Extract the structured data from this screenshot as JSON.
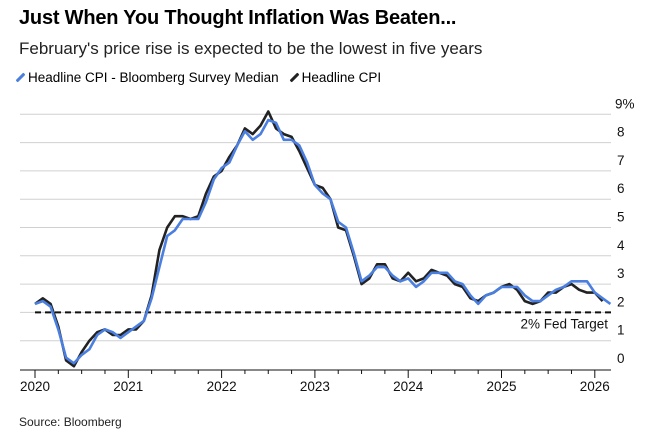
{
  "title": "Just When You Thought Inflation Was Beaten...",
  "subtitle": "February's price rise is expected to be the lowest in five years",
  "source": "Source: Bloomberg",
  "colors": {
    "survey": "#4a7fe0",
    "actual": "#222222",
    "grid": "#d0d0d0"
  },
  "chart_data": {
    "type": "line",
    "title": "Just When You Thought Inflation Was Beaten...",
    "xlabel": "",
    "ylabel": "%",
    "x_start": "2019-12",
    "x_step": "month",
    "xlim": [
      2020,
      2026.3
    ],
    "ylim": [
      0,
      9
    ],
    "x_ticks": [
      "2020",
      "2021",
      "2022",
      "2023",
      "2024",
      "2025",
      "2026"
    ],
    "x_tick_values": [
      2020,
      2021,
      2022,
      2023,
      2024,
      2025,
      2026
    ],
    "y_ticks": [
      "0",
      "1",
      "2",
      "3",
      "4",
      "5",
      "6",
      "7",
      "8",
      "9%"
    ],
    "y_tick_values": [
      0,
      1,
      2,
      3,
      4,
      5,
      6,
      7,
      8,
      9
    ],
    "grid": true,
    "legend_placement": "top-left",
    "series": [
      {
        "name": "Headline CPI - Bloomberg Survey Median",
        "color": "#4a7fe0",
        "values": [
          2.3,
          2.4,
          2.2,
          1.4,
          0.4,
          0.2,
          0.5,
          0.7,
          1.2,
          1.4,
          1.3,
          1.1,
          1.3,
          1.5,
          1.7,
          2.5,
          3.6,
          4.7,
          4.9,
          5.3,
          5.3,
          5.3,
          5.9,
          6.7,
          7.1,
          7.3,
          7.9,
          8.4,
          8.1,
          8.3,
          8.8,
          8.7,
          8.1,
          8.1,
          7.9,
          7.3,
          6.5,
          6.2,
          6.0,
          5.2,
          5.0,
          4.1,
          3.1,
          3.3,
          3.6,
          3.6,
          3.3,
          3.1,
          3.2,
          2.9,
          3.1,
          3.4,
          3.4,
          3.4,
          3.1,
          3.0,
          2.6,
          2.3,
          2.6,
          2.7,
          2.9,
          2.9,
          2.9,
          2.6,
          2.4,
          2.4,
          2.6,
          2.8,
          2.9,
          3.1,
          3.1,
          3.1,
          2.7,
          2.5,
          2.3
        ]
      },
      {
        "name": "Headline CPI",
        "color": "#222222",
        "values": [
          2.3,
          2.5,
          2.3,
          1.5,
          0.3,
          0.1,
          0.6,
          1.0,
          1.3,
          1.4,
          1.2,
          1.2,
          1.4,
          1.4,
          1.7,
          2.6,
          4.2,
          5.0,
          5.4,
          5.4,
          5.3,
          5.4,
          6.2,
          6.8,
          7.0,
          7.5,
          7.9,
          8.5,
          8.3,
          8.6,
          9.1,
          8.5,
          8.3,
          8.2,
          7.7,
          7.1,
          6.5,
          6.4,
          6.0,
          5.0,
          4.9,
          4.0,
          3.0,
          3.2,
          3.7,
          3.7,
          3.2,
          3.1,
          3.4,
          3.1,
          3.2,
          3.5,
          3.4,
          3.3,
          3.0,
          2.9,
          2.5,
          2.4,
          2.6,
          2.7,
          2.9,
          3.0,
          2.8,
          2.4,
          2.3,
          2.4,
          2.7,
          2.7,
          2.9,
          3.0,
          2.8,
          2.7,
          2.7,
          2.4
        ]
      }
    ],
    "annotations": [
      {
        "text": "2% Fed Target",
        "y": 2,
        "style": "dashed"
      }
    ]
  }
}
